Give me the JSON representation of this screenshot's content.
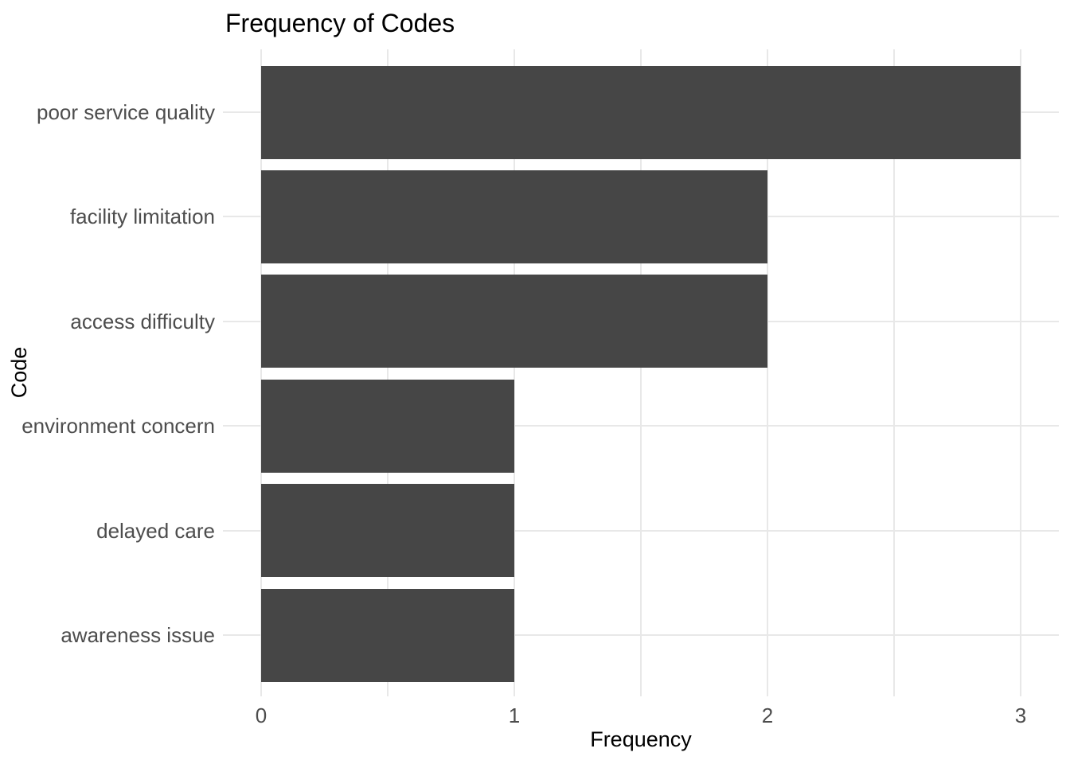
{
  "chart_data": {
    "type": "bar",
    "orientation": "horizontal",
    "title": "Frequency of Codes",
    "xlabel": "Frequency",
    "ylabel": "Code",
    "categories": [
      "poor service quality",
      "facility limitation",
      "access difficulty",
      "environment concern",
      "delayed care",
      "awareness issue"
    ],
    "values": [
      3,
      2,
      2,
      1,
      1,
      1
    ],
    "xlim": [
      -0.15,
      3.15
    ],
    "x_major_ticks": [
      0,
      1,
      2,
      3
    ],
    "x_tick_labels": [
      "0",
      "1",
      "2",
      "3"
    ],
    "x_minor_ticks": [
      0.5,
      1.5,
      2.5
    ],
    "grid": true,
    "legend": "none",
    "colors": {
      "bar_fill": "#464646",
      "gridline": "#e8e8e8",
      "tick_text": "#4d4d4d",
      "title_text": "#000000",
      "background": "#ffffff"
    }
  }
}
